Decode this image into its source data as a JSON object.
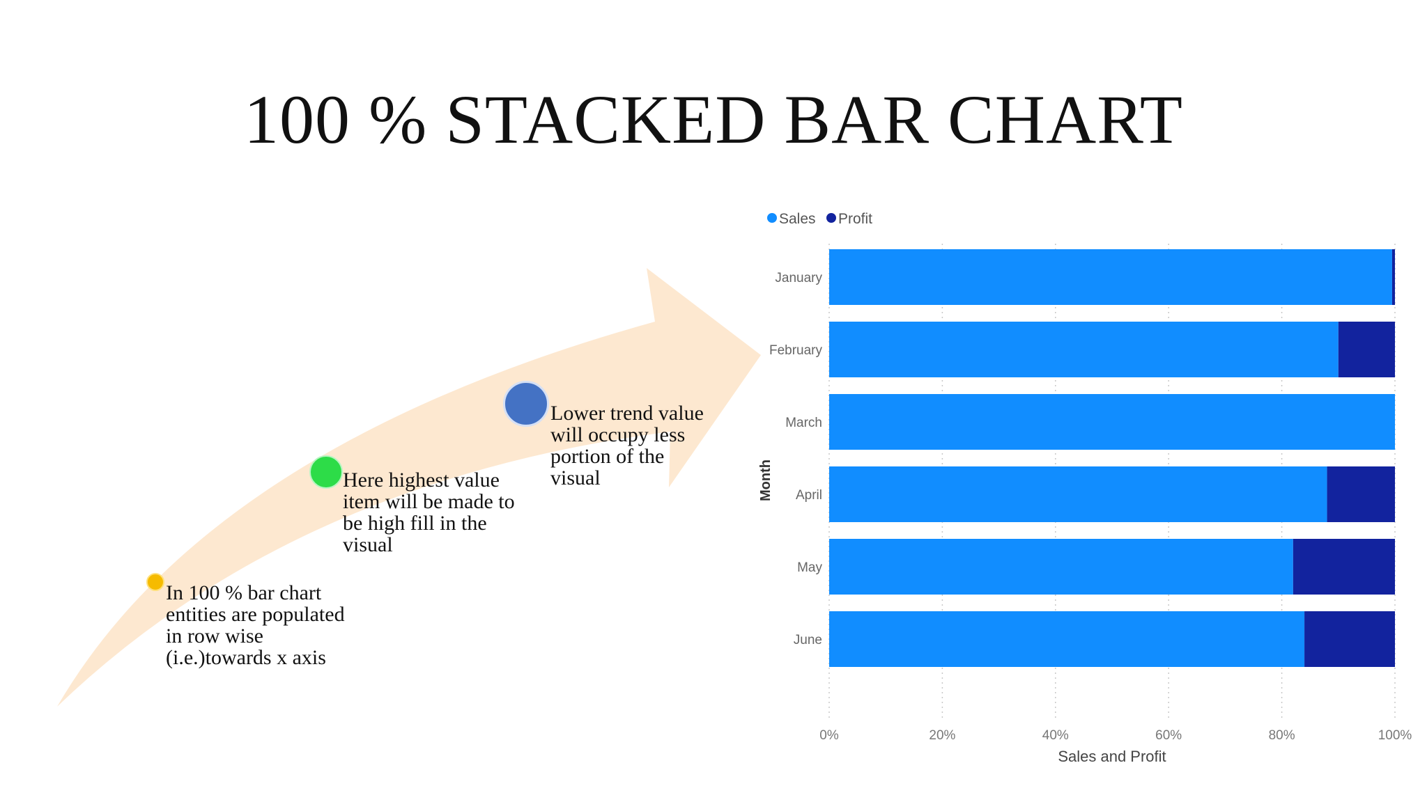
{
  "title": "100 % STACKED BAR CHART",
  "notes": [
    {
      "text": "In 100 % bar chart entities are populated in row wise (i.e.)towards x axis",
      "color": "#f6bb00"
    },
    {
      "text": "Here highest value item will be made to be high fill in the visual",
      "color": "#2ddc48"
    },
    {
      "text": "Lower trend value will occupy less portion of the visual",
      "color": "#4472c4"
    }
  ],
  "chart_data": {
    "type": "bar",
    "orientation": "horizontal",
    "stacked": "100%",
    "categories": [
      "January",
      "February",
      "March",
      "April",
      "May",
      "June"
    ],
    "series": [
      {
        "name": "Sales",
        "color": "#118dff",
        "values": [
          99.5,
          90,
          100,
          88,
          82,
          84
        ]
      },
      {
        "name": "Profit",
        "color": "#12239e",
        "values": [
          0.5,
          10,
          0,
          12,
          18,
          16
        ]
      }
    ],
    "xlabel": "Sales and Profit",
    "ylabel": "Month",
    "xticks": [
      "0%",
      "20%",
      "40%",
      "60%",
      "80%",
      "100%"
    ],
    "xlim": [
      0,
      100
    ],
    "grid": "vertical dotted",
    "legend": "top-left"
  }
}
